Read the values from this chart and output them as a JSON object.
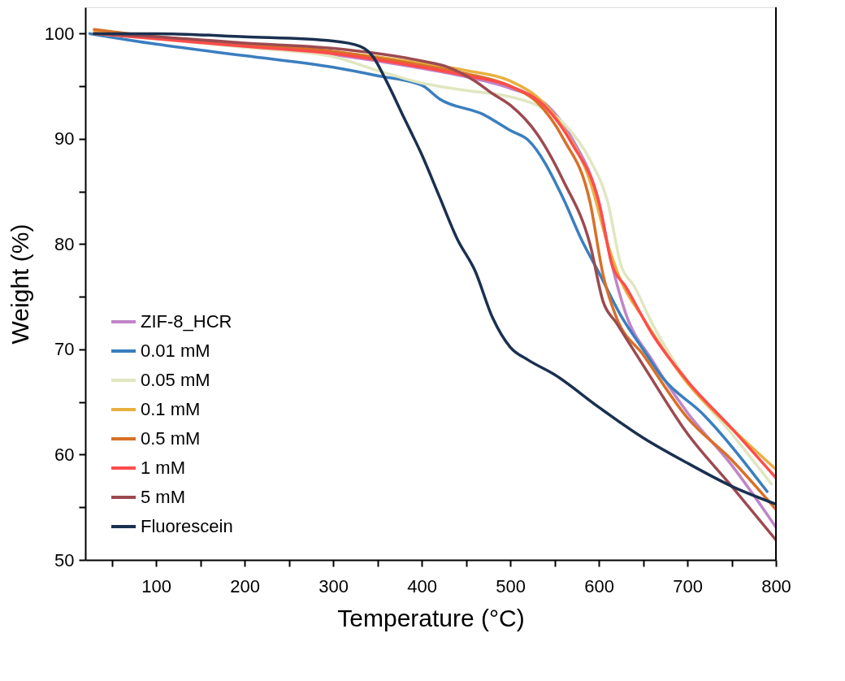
{
  "chart_data": {
    "type": "line",
    "xlabel": "Temperature (°C)",
    "ylabel": "Weight (%)",
    "xlim": [
      20,
      800
    ],
    "ylim": [
      50,
      102.5
    ],
    "xticks": [
      {
        "value": 50,
        "label": null
      },
      100,
      {
        "value": 150,
        "label": null
      },
      200,
      {
        "value": 250,
        "label": null
      },
      300,
      {
        "value": 350,
        "label": null
      },
      400,
      {
        "value": 450,
        "label": null
      },
      500,
      {
        "value": 550,
        "label": null
      },
      600,
      {
        "value": 650,
        "label": null
      },
      700,
      {
        "value": 750,
        "label": null
      },
      800
    ],
    "yticks": [
      50,
      {
        "value": 55,
        "label": null
      },
      60,
      {
        "value": 65,
        "label": null
      },
      70,
      {
        "value": 75,
        "label": null
      },
      80,
      {
        "value": 85,
        "label": null
      },
      90,
      {
        "value": 95,
        "label": null
      },
      100
    ],
    "grid": false,
    "legend": "bottom left",
    "marker": "none",
    "line_style": "solid",
    "series": [
      {
        "name": "ZIF-8_HCR",
        "color": "#c084c8",
        "x": [
          200,
          300,
          400,
          450,
          500,
          540,
          570,
          600,
          615,
          630,
          660,
          700,
          750,
          800
        ],
        "values": [
          98.9,
          98.0,
          96.7,
          95.9,
          94.8,
          93.3,
          90,
          84,
          78,
          73.5,
          69,
          64,
          59,
          53.1
        ]
      },
      {
        "name": "0.01 mM",
        "color": "#3a7ebf",
        "x": [
          25,
          100,
          200,
          300,
          350,
          400,
          420,
          470,
          500,
          520,
          560,
          580,
          600,
          625,
          650,
          672,
          717,
          790
        ],
        "values": [
          100,
          99,
          97.9,
          96.8,
          96,
          95.1,
          93.8,
          92.3,
          90.8,
          89.9,
          84.3,
          80.5,
          77.3,
          73.2,
          70,
          67.3,
          63.9,
          56.5
        ]
      },
      {
        "name": "0.05 mM",
        "color": "#e0e6c0",
        "x": [
          30,
          100,
          200,
          300,
          350,
          400,
          450,
          500,
          530,
          560,
          590,
          610,
          625,
          640,
          660,
          700,
          750,
          795
        ],
        "values": [
          100,
          99.5,
          98.7,
          97.8,
          96.5,
          95.3,
          94.6,
          94,
          93.2,
          91.5,
          88,
          84,
          78,
          76,
          72.5,
          67,
          62,
          57.2
        ]
      },
      {
        "name": "0.1 mM",
        "color": "#e8b040",
        "x": [
          30,
          100,
          200,
          300,
          400,
          450,
          500,
          530,
          560,
          590,
          610,
          625,
          650,
          700,
          750,
          800
        ],
        "values": [
          100.2,
          99.7,
          99.0,
          98.3,
          97.2,
          96.5,
          95.5,
          94,
          91,
          86,
          80,
          76.5,
          73,
          66.8,
          62.5,
          58.6
        ]
      },
      {
        "name": "0.5 mM",
        "color": "#d87028",
        "x": [
          30,
          100,
          200,
          300,
          400,
          450,
          500,
          530,
          560,
          590,
          605,
          620,
          650,
          700,
          750,
          800
        ],
        "values": [
          100.4,
          99.7,
          99,
          98.3,
          97,
          96.2,
          95,
          93.5,
          90,
          84,
          77,
          73,
          69.5,
          63.5,
          59.5,
          54.8
        ]
      },
      {
        "name": "1 mM",
        "color": "#ff4c4c",
        "x": [
          30,
          100,
          200,
          300,
          400,
          450,
          500,
          540,
          570,
          600,
          615,
          630,
          660,
          700,
          750,
          800
        ],
        "values": [
          100,
          99.5,
          98.8,
          98.1,
          96.8,
          96,
          95,
          93,
          89.5,
          84,
          78,
          76,
          71.5,
          67,
          62.5,
          57.8
        ]
      },
      {
        "name": "5 mM",
        "color": "#9c4a50",
        "x": [
          30,
          100,
          200,
          300,
          400,
          430,
          460,
          480,
          500,
          530,
          560,
          590,
          605,
          620,
          650,
          700,
          750,
          800
        ],
        "values": [
          100,
          99.7,
          99.1,
          98.6,
          97.4,
          96.8,
          95.5,
          94.3,
          93.2,
          90.5,
          86,
          80,
          74.5,
          72.5,
          68.5,
          62,
          57,
          51.9
        ]
      },
      {
        "name": "Fluorescein",
        "color": "#1a3050",
        "x": [
          30,
          100,
          200,
          300,
          330,
          345,
          360,
          380,
          400,
          420,
          440,
          460,
          480,
          500,
          520,
          550,
          600,
          650,
          700,
          750,
          800
        ],
        "values": [
          100,
          100,
          99.7,
          99.3,
          98.8,
          97.8,
          95.5,
          92,
          88.5,
          84.5,
          80.5,
          77.5,
          73,
          70.2,
          69,
          67.6,
          64.5,
          61.6,
          59.2,
          57,
          55.3
        ]
      }
    ]
  }
}
